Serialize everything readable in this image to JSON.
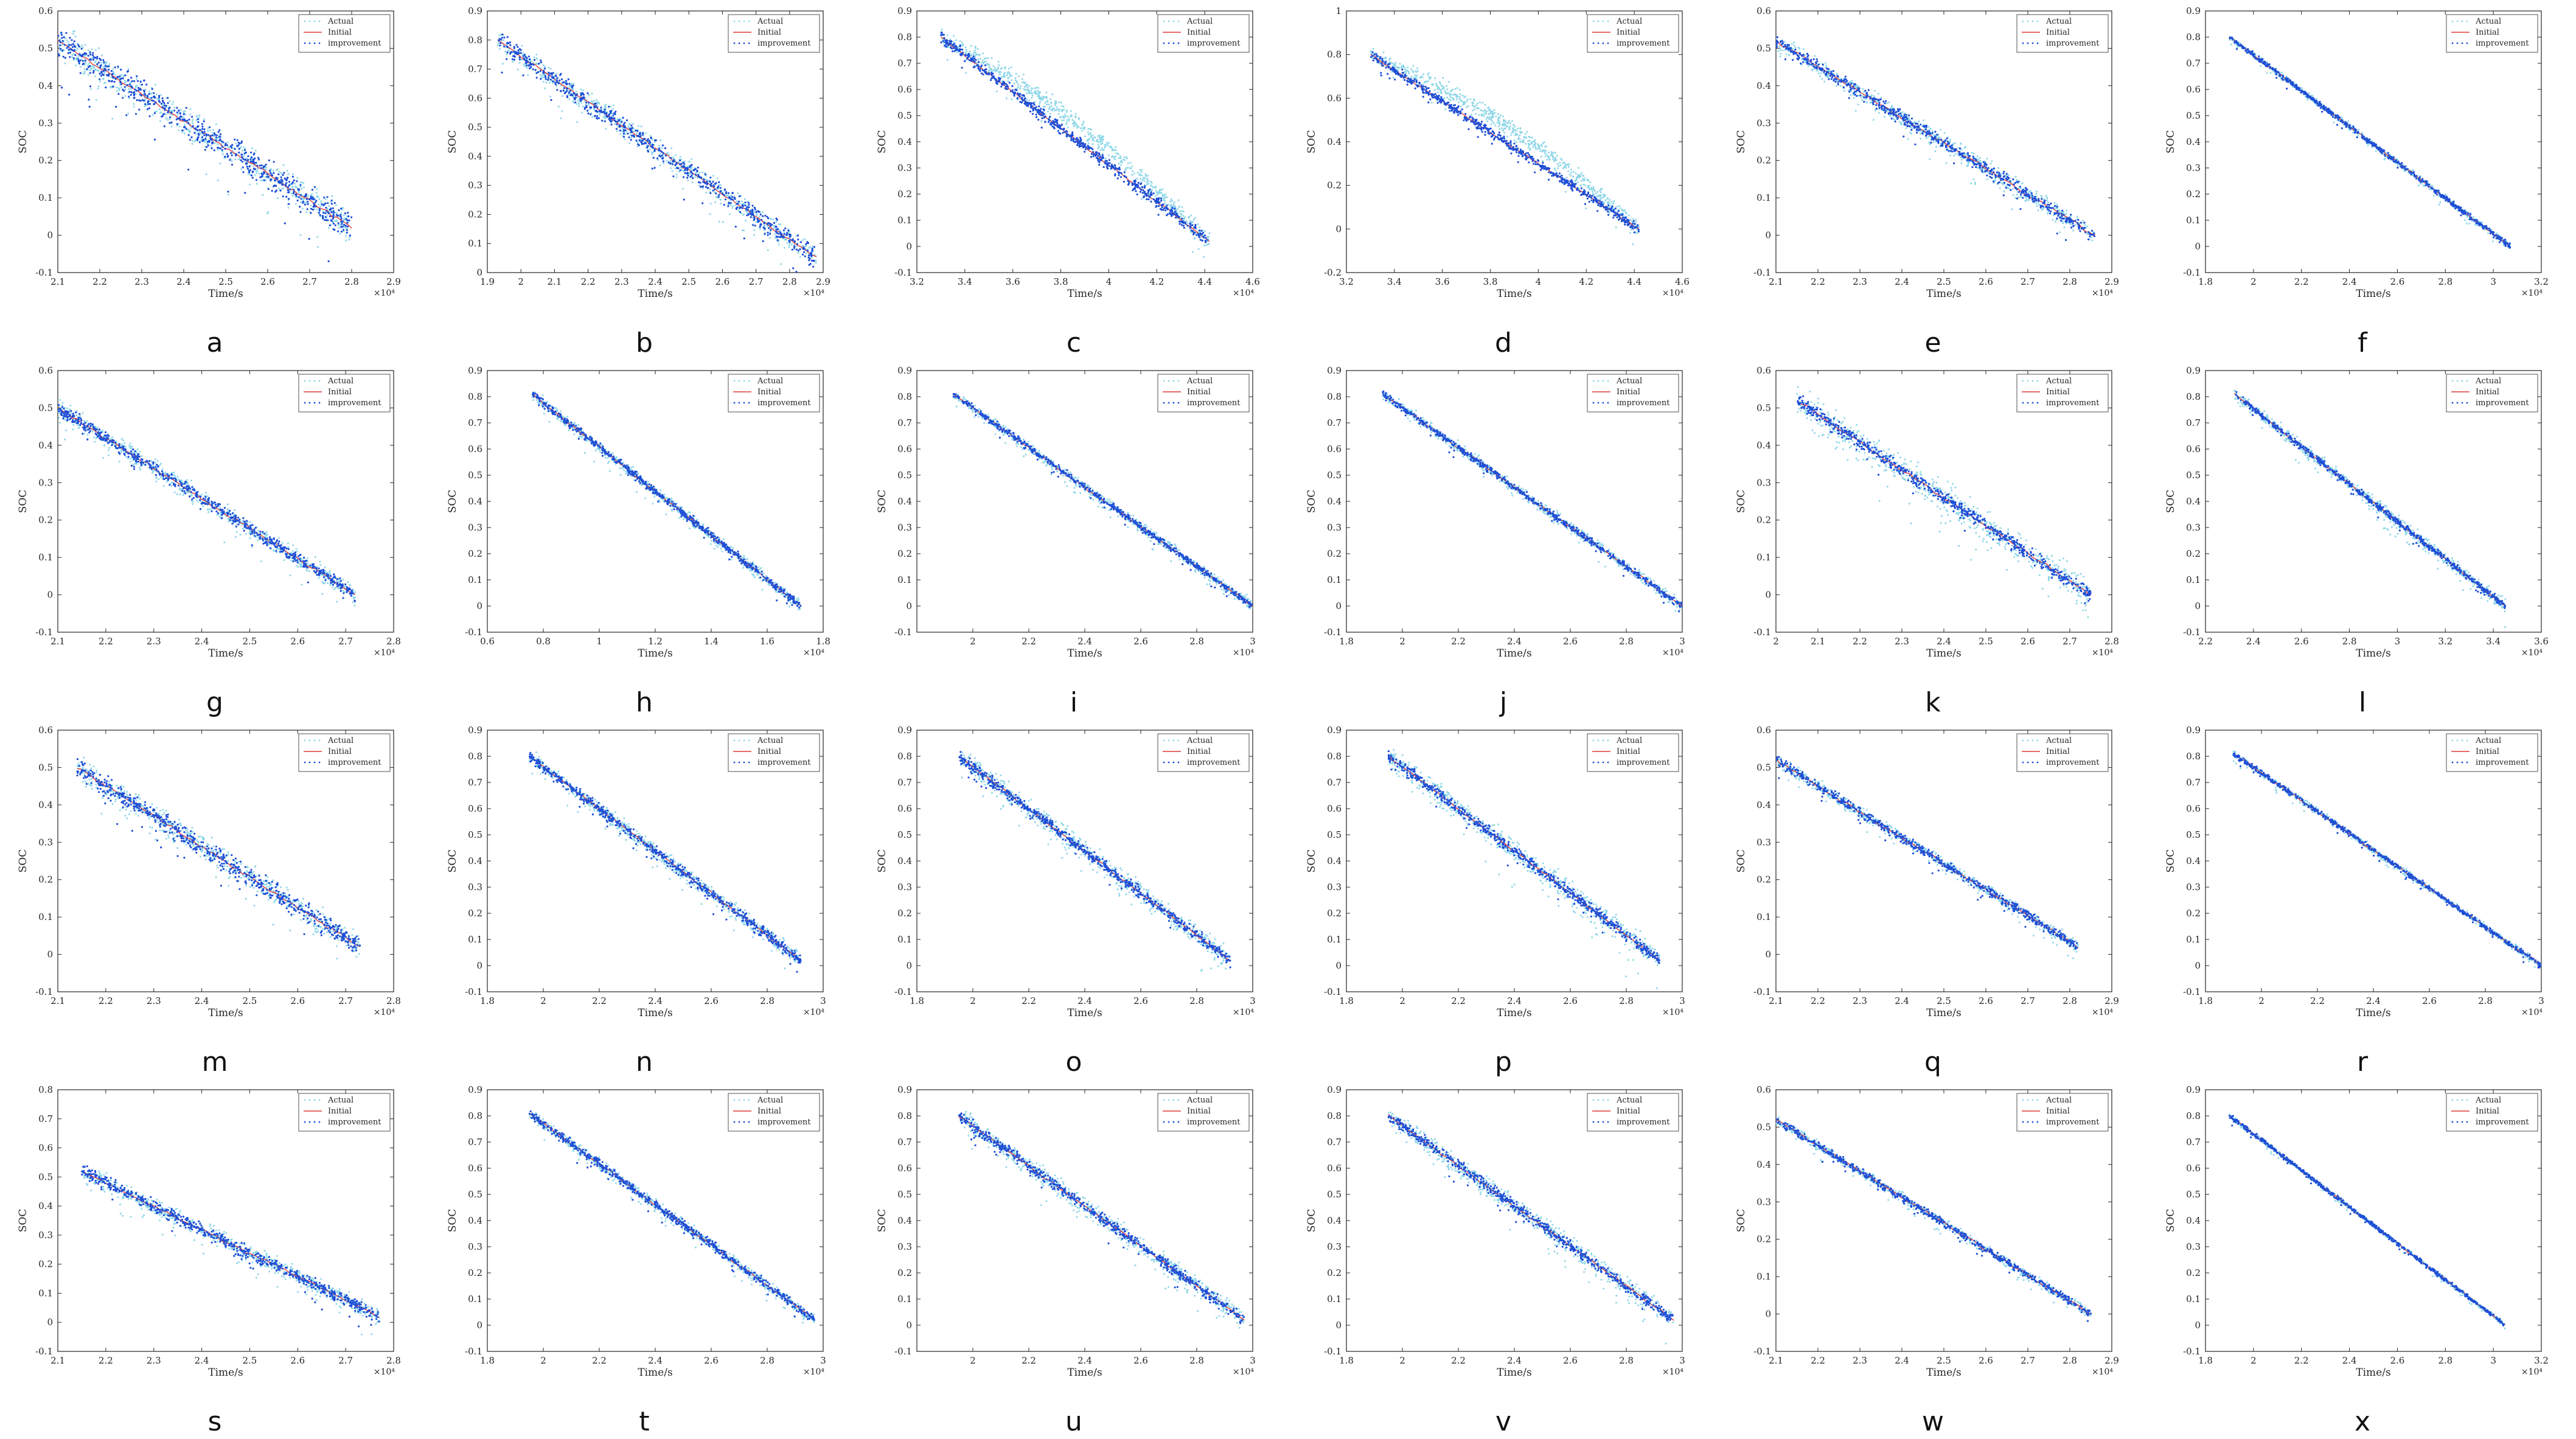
{
  "colors": {
    "actual": "#8fd7e8",
    "initial": "#e03a3a",
    "improvement": "#1e4fd6",
    "axis": "#262626"
  },
  "chart_data": [
    {
      "id": "a",
      "type": "scatter",
      "letter": "a",
      "xlabel": "Time/s",
      "ylabel": "SOC",
      "x_exponent": "×10⁴",
      "xlim": [
        2.1,
        2.9
      ],
      "ylim": [
        -0.1,
        0.6
      ],
      "xticks": [
        2.1,
        2.2,
        2.3,
        2.4,
        2.5,
        2.6,
        2.7,
        2.8,
        2.9
      ],
      "yticks": [
        -0.1,
        0,
        0.1,
        0.2,
        0.3,
        0.4,
        0.5,
        0.6
      ],
      "x_range": [
        2.1,
        2.8
      ],
      "soc_range": [
        0.52,
        0.02
      ],
      "noise": 0.05,
      "impr_noise": 0.045,
      "legend": [
        "Actual",
        "Initial",
        "improvement"
      ]
    },
    {
      "id": "b",
      "type": "scatter",
      "letter": "b",
      "xlabel": "Time/s",
      "ylabel": "SOC",
      "x_exponent": "×10⁴",
      "xlim": [
        1.9,
        2.9
      ],
      "ylim": [
        0,
        0.9
      ],
      "xticks": [
        1.9,
        2,
        2.1,
        2.2,
        2.3,
        2.4,
        2.5,
        2.6,
        2.7,
        2.8,
        2.9
      ],
      "yticks": [
        0,
        0.1,
        0.2,
        0.3,
        0.4,
        0.5,
        0.6,
        0.7,
        0.8,
        0.9
      ],
      "x_range": [
        1.93,
        2.88
      ],
      "soc_range": [
        0.8,
        0.05
      ],
      "noise": 0.045,
      "impr_noise": 0.04,
      "legend": [
        "Actual",
        "Initial",
        "improvement"
      ]
    },
    {
      "id": "c",
      "type": "scatter",
      "letter": "c",
      "xlabel": "Time/s",
      "ylabel": "SOC",
      "x_exponent": "×10⁴",
      "xlim": [
        3.2,
        4.6
      ],
      "ylim": [
        -0.1,
        0.9
      ],
      "xticks": [
        3.2,
        3.4,
        3.6,
        3.8,
        4,
        4.2,
        4.4,
        4.6
      ],
      "yticks": [
        -0.1,
        0,
        0.1,
        0.2,
        0.3,
        0.4,
        0.5,
        0.6,
        0.7,
        0.8,
        0.9
      ],
      "x_range": [
        3.3,
        4.42
      ],
      "soc_range": [
        0.8,
        0.02
      ],
      "noise": 0.04,
      "impr_noise": 0.025,
      "actual_offset": 0.08,
      "legend": [
        "Actual",
        "Initial",
        "improvement"
      ]
    },
    {
      "id": "d",
      "type": "scatter",
      "letter": "d",
      "xlabel": "Time/s",
      "ylabel": "SOC",
      "x_exponent": "×10⁴",
      "xlim": [
        3.2,
        4.6
      ],
      "ylim": [
        -0.2,
        1
      ],
      "xticks": [
        3.2,
        3.4,
        3.6,
        3.8,
        4,
        4.2,
        4.4,
        4.6
      ],
      "yticks": [
        -0.2,
        0,
        0.2,
        0.4,
        0.6,
        0.8,
        1
      ],
      "x_range": [
        3.3,
        4.42
      ],
      "soc_range": [
        0.8,
        0.0
      ],
      "noise": 0.04,
      "impr_noise": 0.025,
      "actual_offset": 0.1,
      "legend": [
        "Actual",
        "Initial",
        "improvement"
      ]
    },
    {
      "id": "e",
      "type": "scatter",
      "letter": "e",
      "xlabel": "Time/s",
      "ylabel": "SOC",
      "x_exponent": "×10⁴",
      "xlim": [
        2.1,
        2.9
      ],
      "ylim": [
        -0.1,
        0.6
      ],
      "xticks": [
        2.1,
        2.2,
        2.3,
        2.4,
        2.5,
        2.6,
        2.7,
        2.8,
        2.9
      ],
      "yticks": [
        -0.1,
        0,
        0.1,
        0.2,
        0.3,
        0.4,
        0.5,
        0.6
      ],
      "x_range": [
        2.1,
        2.86
      ],
      "soc_range": [
        0.52,
        0.0
      ],
      "noise": 0.03,
      "impr_noise": 0.02,
      "legend": [
        "Actual",
        "Initial",
        "improvement"
      ]
    },
    {
      "id": "f",
      "type": "scatter",
      "letter": "f",
      "xlabel": "Time/s",
      "ylabel": "SOC",
      "x_exponent": "×10⁴",
      "xlim": [
        1.8,
        3.2
      ],
      "ylim": [
        -0.1,
        0.9
      ],
      "xticks": [
        1.8,
        2,
        2.2,
        2.4,
        2.6,
        2.8,
        3,
        3.2
      ],
      "yticks": [
        -0.1,
        0,
        0.1,
        0.2,
        0.3,
        0.4,
        0.5,
        0.6,
        0.7,
        0.8,
        0.9
      ],
      "x_range": [
        1.9,
        3.07
      ],
      "soc_range": [
        0.8,
        0.0
      ],
      "noise": 0.015,
      "impr_noise": 0.012,
      "legend": [
        "Actual",
        "Initial",
        "improvement"
      ]
    },
    {
      "id": "g",
      "type": "scatter",
      "letter": "g",
      "xlabel": "Time/s",
      "ylabel": "SOC",
      "x_exponent": "×10⁴",
      "xlim": [
        2.1,
        2.8
      ],
      "ylim": [
        -0.1,
        0.6
      ],
      "xticks": [
        2.1,
        2.2,
        2.3,
        2.4,
        2.5,
        2.6,
        2.7,
        2.8
      ],
      "yticks": [
        -0.1,
        0,
        0.1,
        0.2,
        0.3,
        0.4,
        0.5,
        0.6
      ],
      "x_range": [
        2.1,
        2.72
      ],
      "soc_range": [
        0.5,
        0.0
      ],
      "noise": 0.03,
      "impr_noise": 0.02,
      "legend": [
        "Actual",
        "Initial",
        "improvement"
      ]
    },
    {
      "id": "h",
      "type": "scatter",
      "letter": "h",
      "xlabel": "Time/s",
      "ylabel": "SOC",
      "x_exponent": "×10⁴",
      "xlim": [
        0.6,
        1.8
      ],
      "ylim": [
        -0.1,
        0.9
      ],
      "xticks": [
        0.6,
        0.8,
        1,
        1.2,
        1.4,
        1.6,
        1.8
      ],
      "yticks": [
        -0.1,
        0,
        0.1,
        0.2,
        0.3,
        0.4,
        0.5,
        0.6,
        0.7,
        0.8,
        0.9
      ],
      "x_range": [
        0.76,
        1.72
      ],
      "soc_range": [
        0.81,
        0.0
      ],
      "noise": 0.025,
      "impr_noise": 0.018,
      "legend": [
        "Actual",
        "Initial",
        "improvement"
      ]
    },
    {
      "id": "i",
      "type": "scatter",
      "letter": "i",
      "xlabel": "Time/s",
      "ylabel": "SOC",
      "x_exponent": "×10⁴",
      "xlim": [
        1.8,
        3
      ],
      "ylim": [
        -0.1,
        0.9
      ],
      "xticks": [
        2,
        2.2,
        2.4,
        2.6,
        2.8,
        3
      ],
      "yticks": [
        -0.1,
        0,
        0.1,
        0.2,
        0.3,
        0.4,
        0.5,
        0.6,
        0.7,
        0.8,
        0.9
      ],
      "x_range": [
        1.93,
        3.0
      ],
      "soc_range": [
        0.81,
        0.0
      ],
      "noise": 0.025,
      "impr_noise": 0.015,
      "legend": [
        "Actual",
        "Initial",
        "improvement"
      ]
    },
    {
      "id": "j",
      "type": "scatter",
      "letter": "j",
      "xlabel": "Time/s",
      "ylabel": "SOC",
      "x_exponent": "×10⁴",
      "xlim": [
        1.8,
        3
      ],
      "ylim": [
        -0.1,
        0.9
      ],
      "xticks": [
        1.8,
        2,
        2.2,
        2.4,
        2.6,
        2.8,
        3
      ],
      "yticks": [
        -0.1,
        0,
        0.1,
        0.2,
        0.3,
        0.4,
        0.5,
        0.6,
        0.7,
        0.8,
        0.9
      ],
      "x_range": [
        1.93,
        3.0
      ],
      "soc_range": [
        0.81,
        0.0
      ],
      "noise": 0.025,
      "impr_noise": 0.015,
      "legend": [
        "Actual",
        "Initial",
        "improvement"
      ]
    },
    {
      "id": "k",
      "type": "scatter",
      "letter": "k",
      "xlabel": "Time/s",
      "ylabel": "SOC",
      "x_exponent": "×10⁴",
      "xlim": [
        2,
        2.8
      ],
      "ylim": [
        -0.1,
        0.6
      ],
      "xticks": [
        2,
        2.1,
        2.2,
        2.3,
        2.4,
        2.5,
        2.6,
        2.7,
        2.8
      ],
      "yticks": [
        -0.1,
        0,
        0.1,
        0.2,
        0.3,
        0.4,
        0.5,
        0.6
      ],
      "x_range": [
        2.05,
        2.75
      ],
      "soc_range": [
        0.52,
        0.0
      ],
      "noise": 0.05,
      "impr_noise": 0.02,
      "legend": [
        "Actual",
        "Initial",
        "improvement"
      ]
    },
    {
      "id": "l",
      "type": "scatter",
      "letter": "l",
      "xlabel": "Time/s",
      "ylabel": "SOC",
      "x_exponent": "×10⁴",
      "xlim": [
        2.2,
        3.6
      ],
      "ylim": [
        -0.1,
        0.9
      ],
      "xticks": [
        2.2,
        2.4,
        2.6,
        2.8,
        3,
        3.2,
        3.4,
        3.6
      ],
      "yticks": [
        -0.1,
        0,
        0.1,
        0.2,
        0.3,
        0.4,
        0.5,
        0.6,
        0.7,
        0.8,
        0.9
      ],
      "x_range": [
        2.32,
        3.45
      ],
      "soc_range": [
        0.81,
        0.0
      ],
      "noise": 0.03,
      "impr_noise": 0.015,
      "legend": [
        "Actual",
        "Initial",
        "improvement"
      ]
    },
    {
      "id": "m",
      "type": "scatter",
      "letter": "m",
      "xlabel": "Time/s",
      "ylabel": "SOC",
      "x_exponent": "×10⁴",
      "xlim": [
        2.1,
        2.8
      ],
      "ylim": [
        -0.1,
        0.6
      ],
      "xticks": [
        2.1,
        2.2,
        2.3,
        2.4,
        2.5,
        2.6,
        2.7,
        2.8
      ],
      "yticks": [
        -0.1,
        0,
        0.1,
        0.2,
        0.3,
        0.4,
        0.5,
        0.6
      ],
      "x_range": [
        2.14,
        2.73
      ],
      "soc_range": [
        0.5,
        0.02
      ],
      "noise": 0.04,
      "impr_noise": 0.03,
      "legend": [
        "Actual",
        "Initial",
        "improvement"
      ]
    },
    {
      "id": "n",
      "type": "scatter",
      "letter": "n",
      "xlabel": "Time/s",
      "ylabel": "SOC",
      "x_exponent": "×10⁴",
      "xlim": [
        1.8,
        3
      ],
      "ylim": [
        -0.1,
        0.9
      ],
      "xticks": [
        1.8,
        2,
        2.2,
        2.4,
        2.6,
        2.8,
        3
      ],
      "yticks": [
        -0.1,
        0,
        0.1,
        0.2,
        0.3,
        0.4,
        0.5,
        0.6,
        0.7,
        0.8,
        0.9
      ],
      "x_range": [
        1.95,
        2.92
      ],
      "soc_range": [
        0.8,
        0.02
      ],
      "noise": 0.035,
      "impr_noise": 0.025,
      "legend": [
        "Actual",
        "Initial",
        "improvement"
      ]
    },
    {
      "id": "o",
      "type": "scatter",
      "letter": "o",
      "xlabel": "Time/s",
      "ylabel": "SOC",
      "x_exponent": "×10⁴",
      "xlim": [
        1.8,
        3
      ],
      "ylim": [
        -0.1,
        0.9
      ],
      "xticks": [
        1.8,
        2,
        2.2,
        2.4,
        2.6,
        2.8,
        3
      ],
      "yticks": [
        -0.1,
        0,
        0.1,
        0.2,
        0.3,
        0.4,
        0.5,
        0.6,
        0.7,
        0.8,
        0.9
      ],
      "x_range": [
        1.95,
        2.92
      ],
      "soc_range": [
        0.8,
        0.02
      ],
      "noise": 0.05,
      "impr_noise": 0.025,
      "legend": [
        "Actual",
        "Initial",
        "improvement"
      ]
    },
    {
      "id": "p",
      "type": "scatter",
      "letter": "p",
      "xlabel": "Time/s",
      "ylabel": "SOC",
      "x_exponent": "×10⁴",
      "xlim": [
        1.8,
        3
      ],
      "ylim": [
        -0.1,
        0.9
      ],
      "xticks": [
        1.8,
        2,
        2.2,
        2.4,
        2.6,
        2.8,
        3
      ],
      "yticks": [
        -0.1,
        0,
        0.1,
        0.2,
        0.3,
        0.4,
        0.5,
        0.6,
        0.7,
        0.8,
        0.9
      ],
      "x_range": [
        1.95,
        2.92
      ],
      "soc_range": [
        0.8,
        0.02
      ],
      "noise": 0.055,
      "impr_noise": 0.025,
      "legend": [
        "Actual",
        "Initial",
        "improvement"
      ]
    },
    {
      "id": "q",
      "type": "scatter",
      "letter": "q",
      "xlabel": "Time/s",
      "ylabel": "SOC",
      "x_exponent": "×10⁴",
      "xlim": [
        2.1,
        2.9
      ],
      "ylim": [
        -0.1,
        0.6
      ],
      "xticks": [
        2.1,
        2.2,
        2.3,
        2.4,
        2.5,
        2.6,
        2.7,
        2.8,
        2.9
      ],
      "yticks": [
        -0.1,
        0,
        0.1,
        0.2,
        0.3,
        0.4,
        0.5,
        0.6
      ],
      "x_range": [
        2.1,
        2.82
      ],
      "soc_range": [
        0.52,
        0.02
      ],
      "noise": 0.02,
      "impr_noise": 0.015,
      "legend": [
        "Actual",
        "Initial",
        "improvement"
      ]
    },
    {
      "id": "r",
      "type": "scatter",
      "letter": "r",
      "xlabel": "Time/s",
      "ylabel": "SOC",
      "x_exponent": "×10⁴",
      "xlim": [
        1.8,
        3
      ],
      "ylim": [
        -0.1,
        0.9
      ],
      "xticks": [
        1.8,
        2,
        2.2,
        2.4,
        2.6,
        2.8,
        3
      ],
      "yticks": [
        -0.1,
        0,
        0.1,
        0.2,
        0.3,
        0.4,
        0.5,
        0.6,
        0.7,
        0.8,
        0.9
      ],
      "x_range": [
        1.9,
        3.0
      ],
      "soc_range": [
        0.81,
        0.0
      ],
      "noise": 0.015,
      "impr_noise": 0.012,
      "legend": [
        "Actual",
        "Initial",
        "improvement"
      ]
    },
    {
      "id": "s",
      "type": "scatter",
      "letter": "s",
      "xlabel": "Time/s",
      "ylabel": "SOC",
      "x_exponent": "×10⁴",
      "xlim": [
        2.1,
        2.8
      ],
      "ylim": [
        -0.1,
        0.8
      ],
      "xticks": [
        2.1,
        2.2,
        2.3,
        2.4,
        2.5,
        2.6,
        2.7,
        2.8
      ],
      "yticks": [
        -0.1,
        0,
        0.1,
        0.2,
        0.3,
        0.4,
        0.5,
        0.6,
        0.7,
        0.8
      ],
      "x_range": [
        2.15,
        2.77
      ],
      "soc_range": [
        0.52,
        0.02
      ],
      "noise": 0.035,
      "impr_noise": 0.025,
      "legend": [
        "Actual",
        "Initial",
        "improvement"
      ]
    },
    {
      "id": "t",
      "type": "scatter",
      "letter": "t",
      "xlabel": "Time/s",
      "ylabel": "SOC",
      "x_exponent": "×10⁴",
      "xlim": [
        1.8,
        3
      ],
      "ylim": [
        -0.1,
        0.9
      ],
      "xticks": [
        1.8,
        2,
        2.2,
        2.4,
        2.6,
        2.8,
        3
      ],
      "yticks": [
        -0.1,
        0,
        0.1,
        0.2,
        0.3,
        0.4,
        0.5,
        0.6,
        0.7,
        0.8,
        0.9
      ],
      "x_range": [
        1.95,
        2.97
      ],
      "soc_range": [
        0.81,
        0.02
      ],
      "noise": 0.025,
      "impr_noise": 0.02,
      "legend": [
        "Actual",
        "Initial",
        "improvement"
      ]
    },
    {
      "id": "u",
      "type": "scatter",
      "letter": "u",
      "xlabel": "Time/s",
      "ylabel": "SOC",
      "x_exponent": "×10⁴",
      "xlim": [
        1.8,
        3
      ],
      "ylim": [
        -0.1,
        0.9
      ],
      "xticks": [
        2,
        2.2,
        2.4,
        2.6,
        2.8,
        3
      ],
      "yticks": [
        -0.1,
        0,
        0.1,
        0.2,
        0.3,
        0.4,
        0.5,
        0.6,
        0.7,
        0.8,
        0.9
      ],
      "x_range": [
        1.95,
        2.97
      ],
      "soc_range": [
        0.8,
        0.02
      ],
      "noise": 0.045,
      "impr_noise": 0.025,
      "legend": [
        "Actual",
        "Initial",
        "improvement"
      ]
    },
    {
      "id": "v",
      "type": "scatter",
      "letter": "v",
      "xlabel": "Time/s",
      "ylabel": "SOC",
      "x_exponent": "×10⁴",
      "xlim": [
        1.8,
        3
      ],
      "ylim": [
        -0.1,
        0.9
      ],
      "xticks": [
        1.8,
        2,
        2.2,
        2.4,
        2.6,
        2.8,
        3
      ],
      "yticks": [
        -0.1,
        0,
        0.1,
        0.2,
        0.3,
        0.4,
        0.5,
        0.6,
        0.7,
        0.8,
        0.9
      ],
      "x_range": [
        1.95,
        2.97
      ],
      "soc_range": [
        0.8,
        0.02
      ],
      "noise": 0.045,
      "impr_noise": 0.025,
      "legend": [
        "Actual",
        "Initial",
        "improvement"
      ]
    },
    {
      "id": "w",
      "type": "scatter",
      "letter": "w",
      "xlabel": "Time/s",
      "ylabel": "SOC",
      "x_exponent": "×10⁴",
      "xlim": [
        2.1,
        2.9
      ],
      "ylim": [
        -0.1,
        0.6
      ],
      "xticks": [
        2.1,
        2.2,
        2.3,
        2.4,
        2.5,
        2.6,
        2.7,
        2.8,
        2.9
      ],
      "yticks": [
        -0.1,
        0,
        0.1,
        0.2,
        0.3,
        0.4,
        0.5,
        0.6
      ],
      "x_range": [
        2.1,
        2.85
      ],
      "soc_range": [
        0.52,
        0.0
      ],
      "noise": 0.015,
      "impr_noise": 0.012,
      "legend": [
        "Actual",
        "Initial",
        "improvement"
      ]
    },
    {
      "id": "x",
      "type": "scatter",
      "letter": "x",
      "xlabel": "Time/s",
      "ylabel": "SOC",
      "x_exponent": "×10⁴",
      "xlim": [
        1.8,
        3.2
      ],
      "ylim": [
        -0.1,
        0.9
      ],
      "xticks": [
        1.8,
        2,
        2.2,
        2.4,
        2.6,
        2.8,
        3,
        3.2
      ],
      "yticks": [
        -0.1,
        0,
        0.1,
        0.2,
        0.3,
        0.4,
        0.5,
        0.6,
        0.7,
        0.8,
        0.9
      ],
      "x_range": [
        1.9,
        3.05
      ],
      "soc_range": [
        0.8,
        0.0
      ],
      "noise": 0.01,
      "impr_noise": 0.01,
      "legend": [
        "Actual",
        "Initial",
        "improvement"
      ]
    }
  ]
}
